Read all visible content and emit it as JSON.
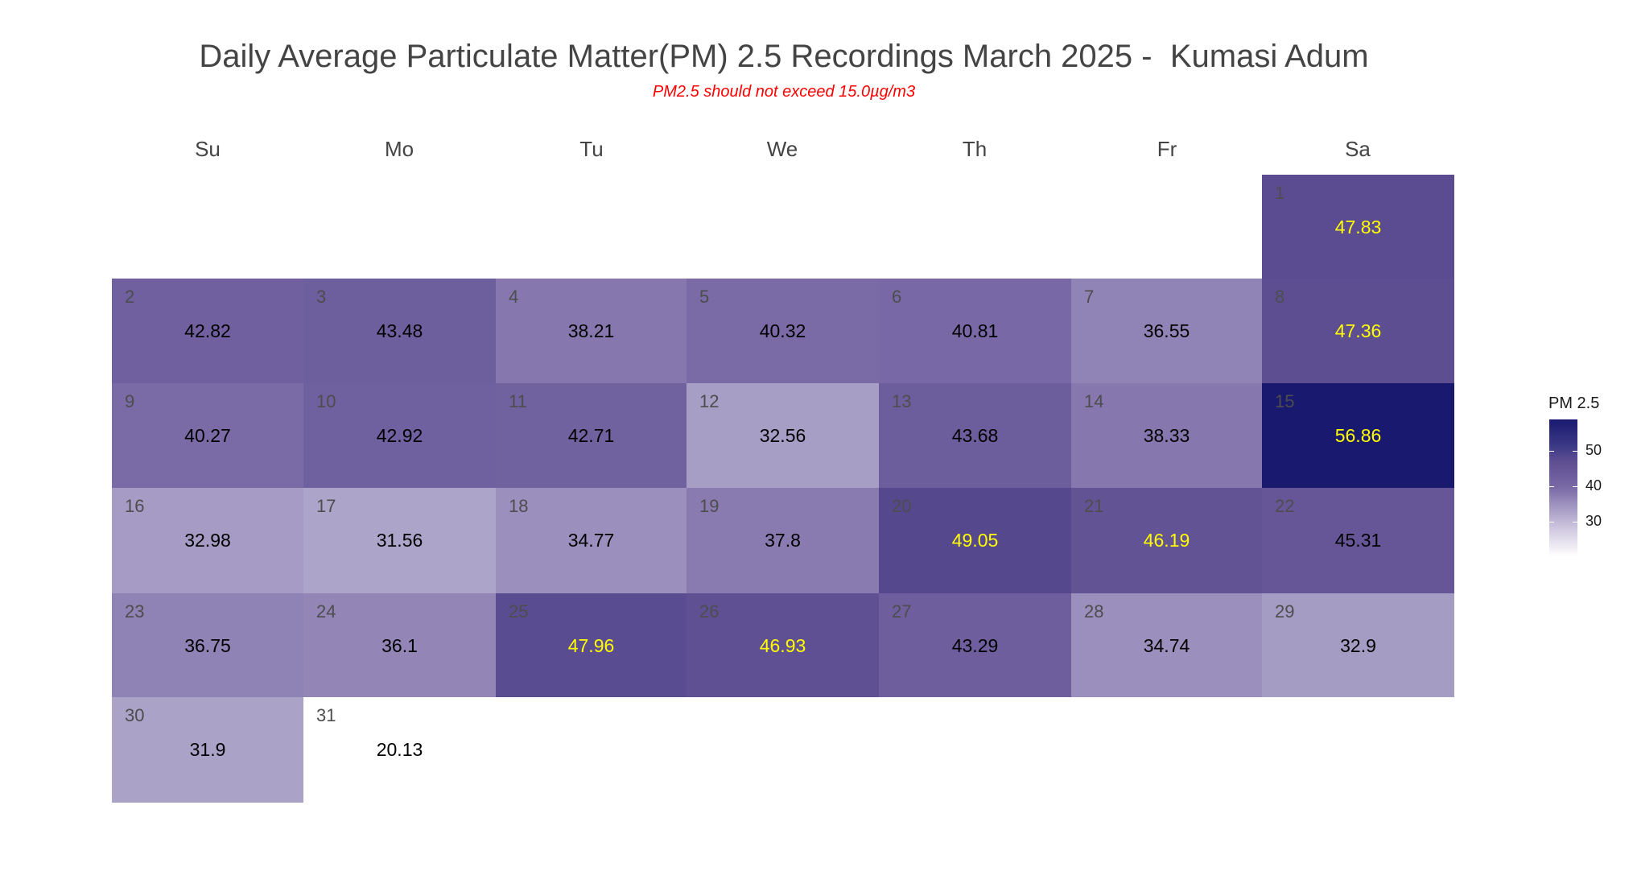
{
  "chart_data": {
    "type": "heatmap",
    "title": "Daily Average Particulate Matter(PM) 2.5 Recordings March 2025 -  Kumasi Adum",
    "subtitle": "PM2.5 should not exceed 15.0µg/m3",
    "weekdays": [
      "Su",
      "Mo",
      "Tu",
      "We",
      "Th",
      "Fr",
      "Sa"
    ],
    "month": "March 2025",
    "first_weekday_index": 6,
    "days": [
      1,
      2,
      3,
      4,
      5,
      6,
      7,
      8,
      9,
      10,
      11,
      12,
      13,
      14,
      15,
      16,
      17,
      18,
      19,
      20,
      21,
      22,
      23,
      24,
      25,
      26,
      27,
      28,
      29,
      30,
      31
    ],
    "values": [
      47.83,
      42.82,
      43.48,
      38.21,
      40.32,
      40.81,
      36.55,
      47.36,
      40.27,
      42.92,
      42.71,
      32.56,
      43.68,
      38.33,
      56.86,
      32.98,
      31.56,
      34.77,
      37.8,
      49.05,
      46.19,
      45.31,
      36.75,
      36.1,
      47.96,
      46.93,
      43.29,
      34.74,
      32.9,
      31.9,
      20.13
    ],
    "legend": {
      "title": "PM 2.5",
      "ticks": [
        50,
        40,
        30
      ],
      "range": [
        20.13,
        56.86
      ],
      "low_color": "#ffffff",
      "high_color": "#191970",
      "position": "right"
    },
    "highlight_threshold": 46,
    "highlight_text_color": "#ffff00",
    "normal_text_color": "#000000"
  }
}
